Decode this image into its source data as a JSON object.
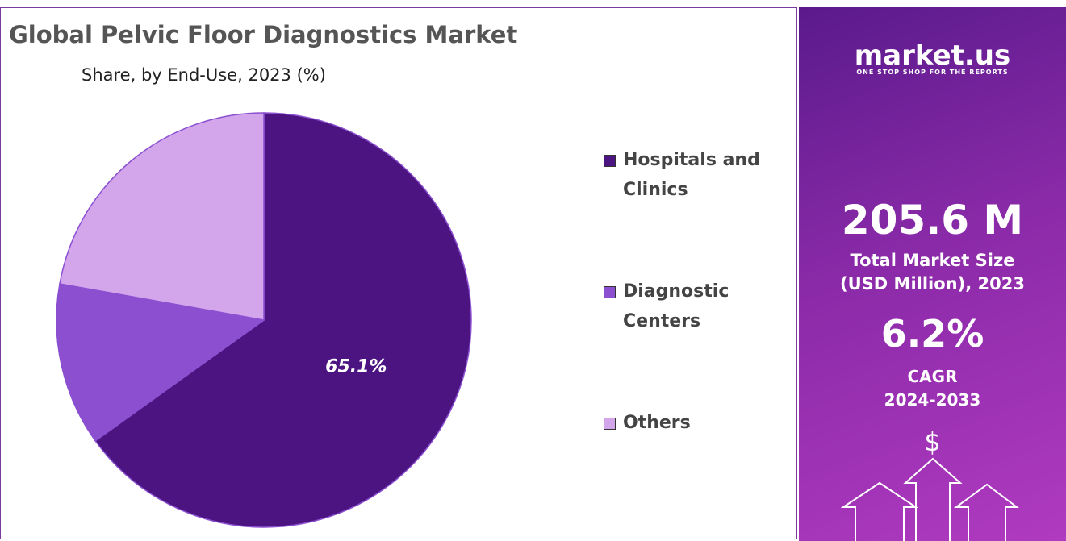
{
  "chart_data": {
    "type": "pie",
    "title": "Global Pelvic Floor Diagnostics Market",
    "subtitle": "Share, by End-Use, 2023 (%)",
    "categories": [
      "Hospitals and Clinics",
      "Diagnostic Centers",
      "Others"
    ],
    "values": [
      65.1,
      12.7,
      22.2
    ],
    "value_labels": [
      "65.1%",
      null,
      null
    ],
    "colors": [
      "#4b1481",
      "#8b4fd0",
      "#d3a6ec"
    ]
  },
  "panel": {
    "brand": "market.us",
    "tagline": "ONE STOP SHOP FOR THE REPORTS",
    "market_size": "205.6 M",
    "market_size_label_1": "Total Market Size",
    "market_size_label_2": "(USD Million), 2023",
    "cagr": "6.2%",
    "cagr_label_1": "CAGR",
    "cagr_label_2": "2024-2033",
    "currency_icon": "$"
  }
}
